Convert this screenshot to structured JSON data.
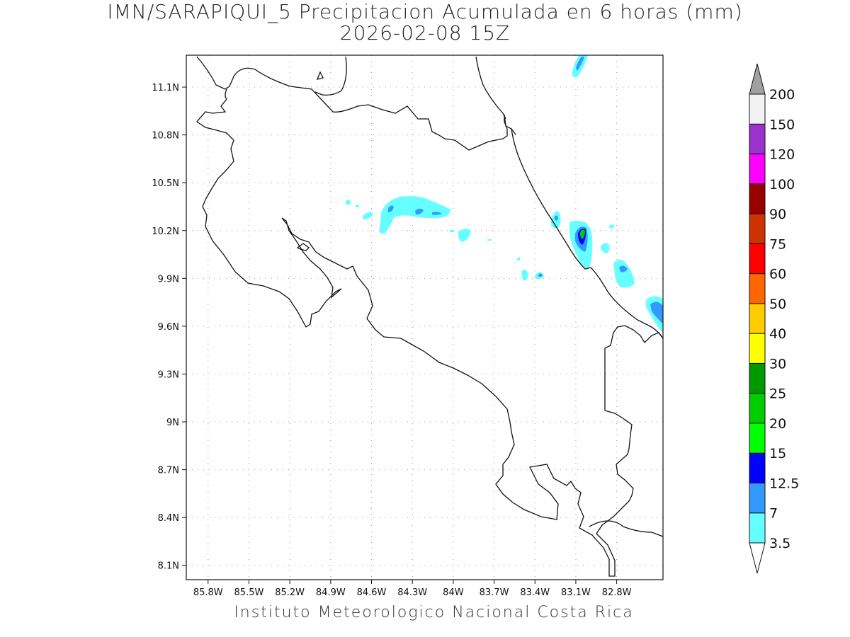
{
  "title": {
    "line1": "IMN/SARAPIQUI_5 Precipitacion Acumulada en 6 horas (mm)",
    "line2": "2026-02-08 15Z"
  },
  "footer": "Instituto Meteorologico Nacional Costa Rica",
  "map": {
    "lon_range": [
      -85.96,
      -82.46
    ],
    "lat_range": [
      8.01,
      11.3
    ],
    "lon_ticks": [
      {
        "value": -85.8,
        "label": "85.8W"
      },
      {
        "value": -85.5,
        "label": "85.5W"
      },
      {
        "value": -85.2,
        "label": "85.2W"
      },
      {
        "value": -84.9,
        "label": "84.9W"
      },
      {
        "value": -84.6,
        "label": "84.6W"
      },
      {
        "value": -84.3,
        "label": "84.3W"
      },
      {
        "value": -84.0,
        "label": "84W"
      },
      {
        "value": -83.7,
        "label": "83.7W"
      },
      {
        "value": -83.4,
        "label": "83.4W"
      },
      {
        "value": -83.1,
        "label": "83.1W"
      },
      {
        "value": -82.8,
        "label": "82.8W"
      }
    ],
    "lat_ticks": [
      {
        "value": 11.1,
        "label": "11.1N"
      },
      {
        "value": 10.8,
        "label": "10.8N"
      },
      {
        "value": 10.5,
        "label": "10.5N"
      },
      {
        "value": 10.2,
        "label": "10.2N"
      },
      {
        "value": 9.9,
        "label": "9.9N"
      },
      {
        "value": 9.6,
        "label": "9.6N"
      },
      {
        "value": 9.3,
        "label": "9.3N"
      },
      {
        "value": 9.0,
        "label": "9N"
      },
      {
        "value": 8.7,
        "label": "8.7N"
      },
      {
        "value": 8.4,
        "label": "8.4N"
      },
      {
        "value": 8.1,
        "label": "8.1N"
      }
    ],
    "grid": "dotted"
  },
  "colorbar": {
    "levels": [
      {
        "label": "3.5",
        "color": "#66ffff"
      },
      {
        "label": "7",
        "color": "#3399ff"
      },
      {
        "label": "12.5",
        "color": "#0000ff"
      },
      {
        "label": "15",
        "color": "#00ff00"
      },
      {
        "label": "20",
        "color": "#00cc00"
      },
      {
        "label": "25",
        "color": "#009900"
      },
      {
        "label": "30",
        "color": "#ffff00"
      },
      {
        "label": "40",
        "color": "#ffcc00"
      },
      {
        "label": "50",
        "color": "#ff6600"
      },
      {
        "label": "60",
        "color": "#ff0000"
      },
      {
        "label": "75",
        "color": "#cc3300"
      },
      {
        "label": "90",
        "color": "#990000"
      },
      {
        "label": "100",
        "color": "#ff00ff"
      },
      {
        "label": "120",
        "color": "#9933cc"
      },
      {
        "label": "150",
        "color": "#f2f2f2"
      },
      {
        "label": "200",
        "color": "#999999"
      }
    ],
    "low_arrow_color": "#ffffff",
    "high_arrow_color": "#a0a0a0"
  }
}
